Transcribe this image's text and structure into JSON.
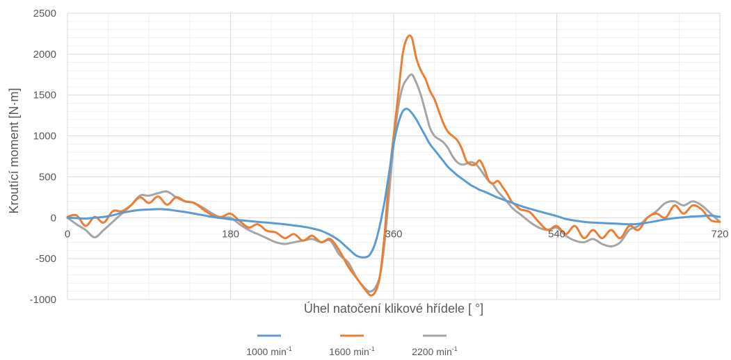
{
  "chart_data": {
    "type": "line",
    "xlabel": "Úhel natočení klikové hřídele [ °]",
    "ylabel": "Kroutící moment [N·m]",
    "xlim": [
      0,
      720
    ],
    "ylim": [
      -1000,
      2500
    ],
    "x_ticks": [
      0,
      180,
      360,
      540,
      720
    ],
    "y_ticks": [
      -1000,
      -500,
      0,
      500,
      1000,
      1500,
      2000,
      2500
    ],
    "grid": true,
    "legend_position": "bottom",
    "x": [
      0,
      10,
      20,
      30,
      40,
      50,
      60,
      70,
      80,
      90,
      100,
      110,
      120,
      130,
      140,
      150,
      160,
      170,
      180,
      190,
      200,
      210,
      220,
      230,
      240,
      250,
      260,
      270,
      280,
      290,
      300,
      310,
      320,
      330,
      335,
      340,
      345,
      350,
      355,
      360,
      365,
      370,
      375,
      380,
      385,
      390,
      395,
      400,
      405,
      410,
      415,
      420,
      425,
      430,
      435,
      440,
      445,
      450,
      455,
      460,
      465,
      470,
      475,
      480,
      485,
      490,
      495,
      500,
      510,
      520,
      530,
      540,
      550,
      560,
      570,
      580,
      590,
      600,
      610,
      620,
      630,
      640,
      650,
      660,
      670,
      680,
      690,
      700,
      710,
      720
    ],
    "series": [
      {
        "name": "1000 min-1",
        "color": "#5b9bd5",
        "values": [
          0,
          -5,
          -10,
          0,
          10,
          30,
          60,
          80,
          95,
          100,
          105,
          100,
          85,
          70,
          50,
          30,
          10,
          -5,
          -20,
          -30,
          -40,
          -50,
          -60,
          -70,
          -80,
          -95,
          -110,
          -130,
          -160,
          -210,
          -280,
          -380,
          -470,
          -480,
          -430,
          -300,
          -80,
          200,
          550,
          900,
          1150,
          1300,
          1330,
          1280,
          1200,
          1100,
          1000,
          900,
          830,
          760,
          690,
          620,
          570,
          520,
          480,
          440,
          400,
          370,
          340,
          320,
          295,
          270,
          245,
          225,
          205,
          185,
          165,
          145,
          110,
          80,
          50,
          20,
          -15,
          -35,
          -50,
          -60,
          -65,
          -70,
          -75,
          -80,
          -75,
          -60,
          -40,
          -20,
          -5,
          5,
          15,
          20,
          25,
          10
        ]
      },
      {
        "name": "1600 min-1",
        "color": "#ed7d31",
        "values": [
          10,
          30,
          -100,
          10,
          -60,
          80,
          80,
          150,
          250,
          180,
          260,
          160,
          250,
          200,
          180,
          100,
          30,
          10,
          50,
          -40,
          -120,
          -80,
          -160,
          -180,
          -250,
          -200,
          -280,
          -220,
          -300,
          -260,
          -400,
          -600,
          -750,
          -900,
          -950,
          -900,
          -700,
          -200,
          500,
          1000,
          1500,
          2000,
          2200,
          2200,
          1950,
          1800,
          1700,
          1550,
          1450,
          1300,
          1150,
          1050,
          1000,
          950,
          850,
          700,
          650,
          650,
          700,
          600,
          450,
          420,
          450,
          380,
          300,
          200,
          150,
          100,
          70,
          -50,
          -150,
          -100,
          -200,
          -100,
          -250,
          -150,
          -250,
          -150,
          -250,
          -100,
          -150,
          0,
          50,
          0,
          150,
          50,
          150,
          100,
          -30,
          -50
        ]
      },
      {
        "name": "2200 min-1",
        "color": "#a5a5a5",
        "values": [
          0,
          -80,
          -150,
          -240,
          -150,
          -50,
          50,
          150,
          270,
          270,
          300,
          320,
          250,
          200,
          180,
          120,
          50,
          0,
          0,
          -80,
          -150,
          -200,
          -250,
          -300,
          -320,
          -300,
          -280,
          -260,
          -300,
          -280,
          -450,
          -550,
          -750,
          -880,
          -900,
          -850,
          -700,
          -300,
          300,
          900,
          1350,
          1600,
          1700,
          1750,
          1650,
          1500,
          1300,
          1100,
          1000,
          960,
          920,
          850,
          750,
          680,
          650,
          660,
          680,
          660,
          600,
          520,
          450,
          400,
          320,
          260,
          200,
          130,
          80,
          40,
          -50,
          -120,
          -150,
          -120,
          -220,
          -280,
          -300,
          -260,
          -320,
          -350,
          -300,
          -150,
          -100,
          0,
          80,
          180,
          200,
          150,
          200,
          150,
          50,
          -50
        ]
      }
    ]
  },
  "legend": {
    "items": [
      {
        "prefix": "1000 min",
        "sup": "-1"
      },
      {
        "prefix": "1600 min",
        "sup": "-1"
      },
      {
        "prefix": "2200 min",
        "sup": "-1"
      }
    ]
  }
}
